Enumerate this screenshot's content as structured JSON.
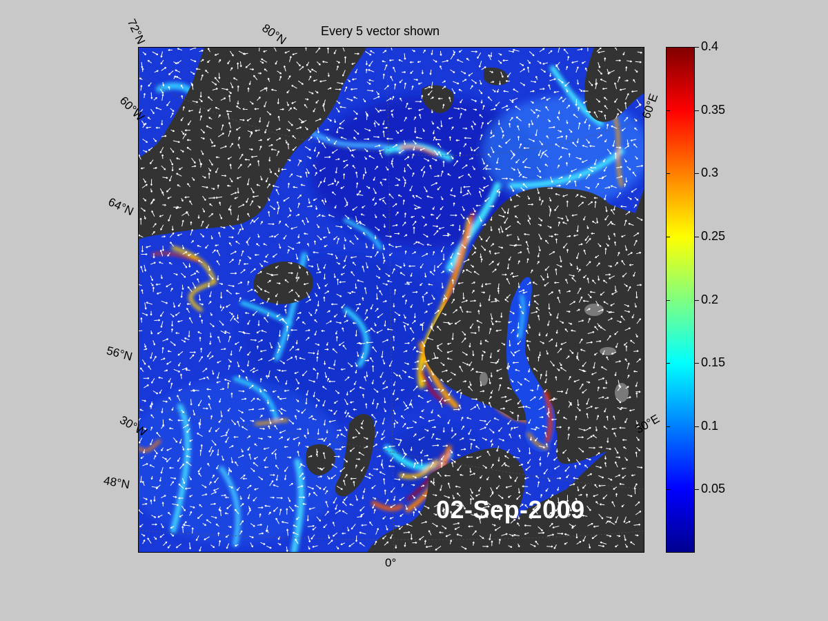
{
  "title": "Every 5 vector shown",
  "date": "02-Sep-2009",
  "grid_labels": [
    {
      "id": "lat-72n",
      "text": "72°N"
    },
    {
      "id": "lat-80n",
      "text": "80°N"
    },
    {
      "id": "lat-60w",
      "text": "60°W"
    },
    {
      "id": "lat-64n",
      "text": "64°N"
    },
    {
      "id": "lat-56n",
      "text": "56°N"
    },
    {
      "id": "lon-30w",
      "text": "30°W"
    },
    {
      "id": "lat-48n",
      "text": "48°N"
    },
    {
      "id": "lon-0",
      "text": "0°"
    },
    {
      "id": "lon-30e",
      "text": "30°E"
    },
    {
      "id": "lon-60e",
      "text": "60°E"
    }
  ],
  "colorbar": {
    "min": 0,
    "max": 0.4,
    "ticks": [
      "0.4",
      "0.35",
      "0.3",
      "0.25",
      "0.2",
      "0.15",
      "0.1",
      "0.05"
    ],
    "tick_values": [
      0.4,
      0.35,
      0.3,
      0.25,
      0.2,
      0.15,
      0.1,
      0.05
    ],
    "colormap": "jet"
  },
  "colors": {
    "background": "#c8c8c8",
    "land": "#333333",
    "ocean_base": "#1a40e0",
    "vectors": "#ffffff"
  }
}
